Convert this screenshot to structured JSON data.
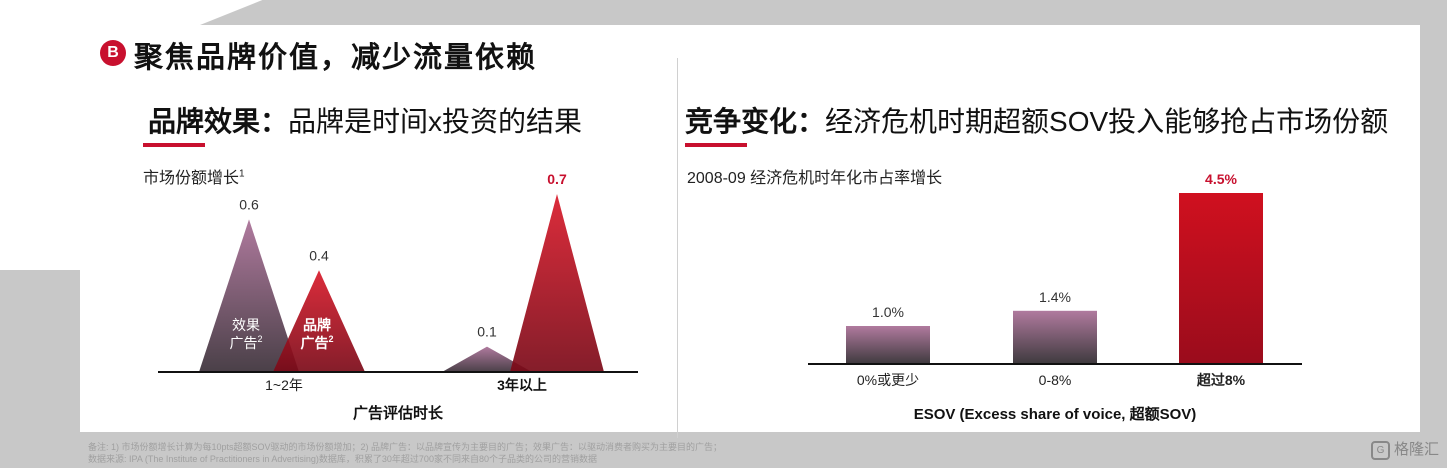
{
  "header": {
    "badge": "B",
    "title": "聚焦品牌价值，减少流量依赖"
  },
  "left": {
    "heading_bold": "品牌效果：",
    "heading_rest": "品牌是时间x投资的结果",
    "chart_title": "市场份额增长",
    "chart_title_sup": "1"
  },
  "right": {
    "heading_bold": "竞争变化：",
    "heading_rest": "经济危机时期超额SOV投入能够抢占市场份额",
    "chart_title": "2008-09 经济危机时年化市占率增长"
  },
  "footnotes": {
    "line1": "备注: 1) 市场份额增长计算为每10pts超额SOV驱动的市场份额增加；2) 品牌广告：以品牌宣传为主要目的广告；效果广告：以驱动消费者购买为主要目的广告；",
    "line2": "数据来源: IPA (The Institute of Practitioners in Advertising)数据库，积累了30年超过700家不同来自80个子品类的公司的营销数据"
  },
  "brand": {
    "icon": "gelonghui-logo-icon",
    "label": "格隆汇"
  },
  "chart_data": [
    {
      "type": "area",
      "title": "市场份额增长",
      "xlabel": "广告评估时长",
      "categories": [
        "1~2年",
        "3年以上"
      ],
      "series": [
        {
          "name": "效果广告",
          "label_lines": [
            "效果",
            "广告"
          ],
          "label_sup": "2",
          "values": [
            0.6,
            0.1
          ],
          "value_labels": [
            "0.6",
            "0.1"
          ],
          "color": "#a0688f"
        },
        {
          "name": "品牌广告",
          "label_lines": [
            "品牌",
            "广告"
          ],
          "label_sup": "2",
          "values": [
            0.4,
            0.7
          ],
          "value_labels": [
            "0.4",
            "0.7"
          ],
          "color": "#c8102e"
        }
      ],
      "ylim": [
        0,
        0.7
      ],
      "grid": false
    },
    {
      "type": "bar",
      "title": "2008-09 经济危机时年化市占率增长",
      "xlabel": "ESOV (Excess share of voice, 超额SOV)",
      "categories": [
        "0%或更少",
        "0-8%",
        "超过8%"
      ],
      "values": [
        1.0,
        1.4,
        4.5
      ],
      "value_labels": [
        "1.0%",
        "1.4%",
        "4.5%"
      ],
      "colors": [
        "#b07a9e",
        "#b07a9e",
        "#c8102e"
      ],
      "highlight_index": 2,
      "ylim": [
        0,
        4.5
      ],
      "grid": false
    }
  ]
}
